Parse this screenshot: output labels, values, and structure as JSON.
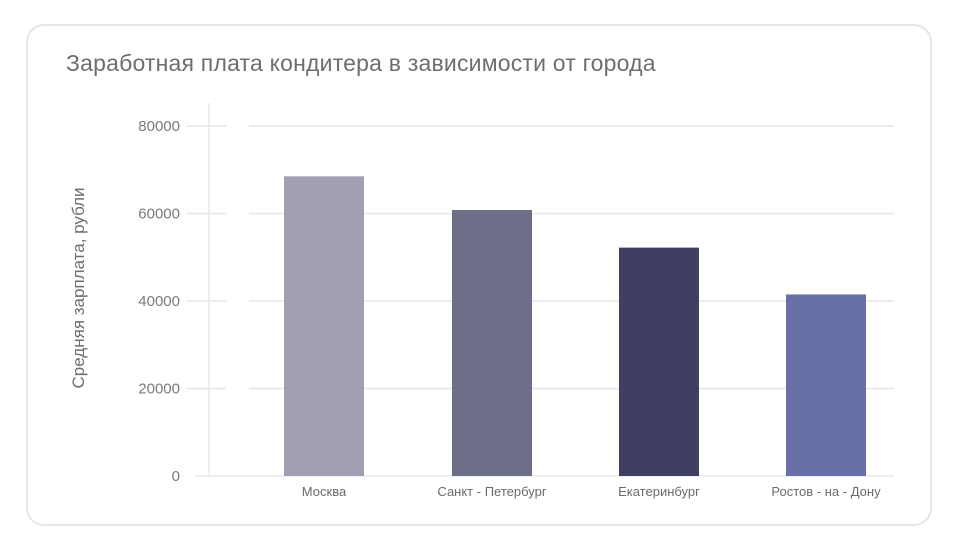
{
  "chart_data": {
    "type": "bar",
    "title": "Заработная плата кондитера в зависимости от города",
    "xlabel": "",
    "ylabel": "Средняя зарплата, рубли",
    "categories": [
      "Москва",
      "Санкт - Петербург",
      "Екатеринбург",
      "Ростов - на - Дону"
    ],
    "values": [
      68500,
      60800,
      52200,
      41500
    ],
    "colors": [
      "#a09fb3",
      "#6d6e88",
      "#3f3f62",
      "#6870a7"
    ],
    "ylim": [
      0,
      80000
    ],
    "yticks": [
      0,
      20000,
      40000,
      60000,
      80000
    ],
    "ytick_labels": [
      "0",
      "20000",
      "40000",
      "60000",
      "80000"
    ],
    "grid": true,
    "legend": "none"
  }
}
